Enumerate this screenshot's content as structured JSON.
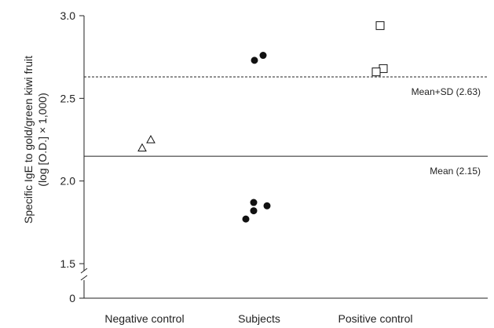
{
  "chart_data": {
    "type": "scatter",
    "title": "",
    "xlabel": "",
    "ylabel_lines": [
      "Specific IgE to gold/green kiwi fruit",
      "(log [O.D.] × 1,000)"
    ],
    "categories": [
      "Negative control",
      "Subjects",
      "Positive control"
    ],
    "y_ticks": [
      {
        "value": 3.0,
        "label": "3.0"
      },
      {
        "value": 2.5,
        "label": "2.5"
      },
      {
        "value": 2.0,
        "label": "2.0"
      },
      {
        "value": 1.5,
        "label": "1.5"
      },
      {
        "value": 0,
        "label": "0"
      }
    ],
    "ylim": [
      1.4,
      3.05
    ],
    "y_axis_break": true,
    "series": [
      {
        "category": "Negative control",
        "marker": "open-triangle",
        "values": [
          2.2,
          2.25
        ]
      },
      {
        "category": "Subjects",
        "marker": "filled-circle",
        "values": [
          2.73,
          2.76,
          1.87,
          1.82,
          1.85,
          1.77
        ]
      },
      {
        "category": "Positive control",
        "marker": "open-square",
        "values": [
          2.94,
          2.68,
          2.66
        ]
      }
    ],
    "reference_lines": [
      {
        "label": "Mean+SD (2.63)",
        "value": 2.63,
        "style": "dashed"
      },
      {
        "label": "Mean (2.15)",
        "value": 2.15,
        "style": "solid"
      }
    ],
    "grid": false,
    "legend": "none"
  }
}
